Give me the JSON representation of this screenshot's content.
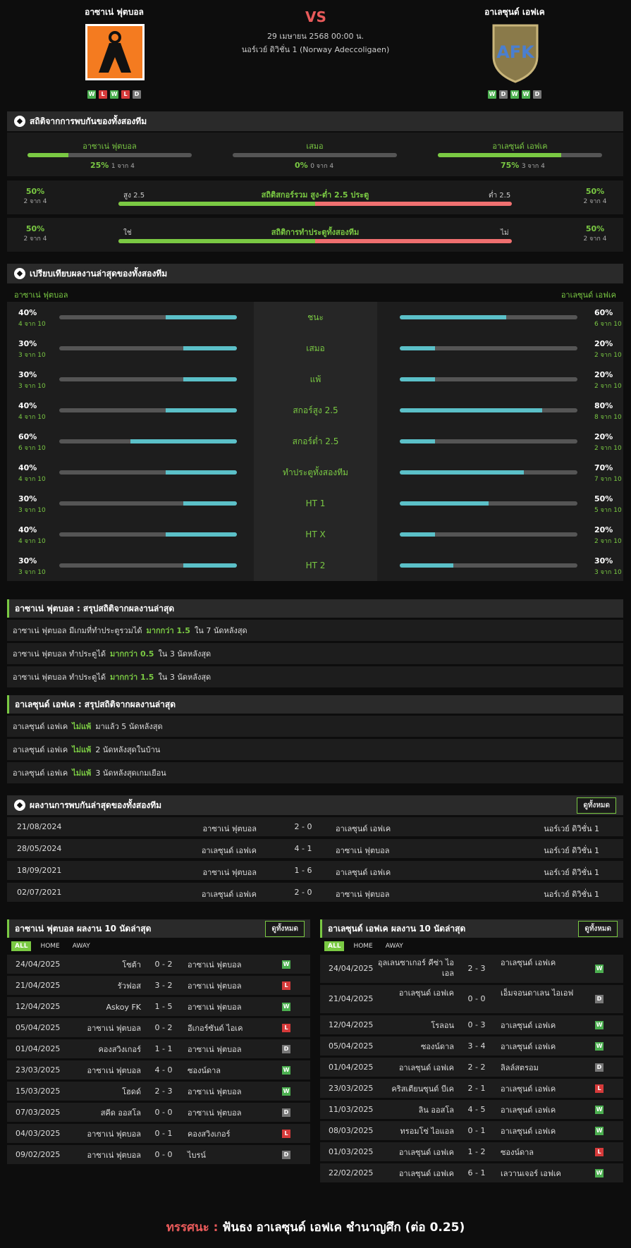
{
  "header": {
    "home_name": "อาซาเน่ ฟุตบอล",
    "away_name": "อาเลซุนด์ เอฟเค",
    "vs": "VS",
    "date": "29 เมษายน 2568 00:00 น.",
    "league": "นอร์เวย์ ดิวิชั่น 1 (Norway Adeccoligaen)",
    "home_form": [
      "W",
      "L",
      "W",
      "L",
      "D"
    ],
    "away_form": [
      "W",
      "D",
      "W",
      "W",
      "D"
    ],
    "home_logo_color": "#f47b20",
    "away_logo_color": "#8a7a4a"
  },
  "h2h_stats": {
    "title": "สถิติจากการพบกันของทั้งสองทีม",
    "home": {
      "label": "อาซาเน่ ฟุตบอล",
      "pct": "25%",
      "sub": "1 จาก 4",
      "value": 0.25
    },
    "draw": {
      "label": "เสมอ",
      "pct": "0%",
      "sub": "0 จาก 4",
      "value": 0
    },
    "away": {
      "label": "อาเลซุนด์ เอฟเค",
      "pct": "75%",
      "sub": "3 จาก 4",
      "value": 0.75
    },
    "ou": {
      "title": "สถิติสกอร์รวม สูง-ต่ำ 2.5 ประตู",
      "left_label": "สูง 2.5",
      "right_label": "ต่ำ 2.5",
      "left_pct": "50%",
      "left_sub": "2 จาก 4",
      "right_pct": "50%",
      "right_sub": "2 จาก 4",
      "split": 0.5
    },
    "btts": {
      "title": "สถิติการทำประตูทั้งสองทีม",
      "left_label": "ใช่",
      "right_label": "ไม่",
      "left_pct": "50%",
      "left_sub": "2 จาก 4",
      "right_pct": "50%",
      "right_sub": "2 จาก 4",
      "split": 0.5
    }
  },
  "compare": {
    "title": "เปรียบเทียบผลงานล่าสุดของทั้งสองทีม",
    "home_label": "อาซาเน่ ฟุตบอล",
    "away_label": "อาเลซุนด์ เอฟเค",
    "rows": [
      {
        "label": "ชนะ",
        "hp": "40%",
        "hs": "4 จาก 10",
        "hv": 0.4,
        "ap": "60%",
        "as": "6 จาก 10",
        "av": 0.6
      },
      {
        "label": "เสมอ",
        "hp": "30%",
        "hs": "3 จาก 10",
        "hv": 0.3,
        "ap": "20%",
        "as": "2 จาก 10",
        "av": 0.2
      },
      {
        "label": "แพ้",
        "hp": "30%",
        "hs": "3 จาก 10",
        "hv": 0.3,
        "ap": "20%",
        "as": "2 จาก 10",
        "av": 0.2
      },
      {
        "label": "สกอร์สูง 2.5",
        "hp": "40%",
        "hs": "4 จาก 10",
        "hv": 0.4,
        "ap": "80%",
        "as": "8 จาก 10",
        "av": 0.8
      },
      {
        "label": "สกอร์ต่ำ 2.5",
        "hp": "60%",
        "hs": "6 จาก 10",
        "hv": 0.6,
        "ap": "20%",
        "as": "2 จาก 10",
        "av": 0.2
      },
      {
        "label": "ทำประตูทั้งสองทีม",
        "hp": "40%",
        "hs": "4 จาก 10",
        "hv": 0.4,
        "ap": "70%",
        "as": "7 จาก 10",
        "av": 0.7
      },
      {
        "label": "HT 1",
        "hp": "30%",
        "hs": "3 จาก 10",
        "hv": 0.3,
        "ap": "50%",
        "as": "5 จาก 10",
        "av": 0.5
      },
      {
        "label": "HT X",
        "hp": "40%",
        "hs": "4 จาก 10",
        "hv": 0.4,
        "ap": "20%",
        "as": "2 จาก 10",
        "av": 0.2
      },
      {
        "label": "HT 2",
        "hp": "30%",
        "hs": "3 จาก 10",
        "hv": 0.3,
        "ap": "30%",
        "as": "3 จาก 10",
        "av": 0.3
      }
    ]
  },
  "home_summary": {
    "title": "อาซาเน่ ฟุตบอล : สรุปสถิติจากผลงานล่าสุด",
    "rows": [
      {
        "a": "อาซาเน่ ฟุตบอล  มีเกมที่ทำประตูรวมได้",
        "h": "มากกว่า  1.5",
        "b": "ใน 7 นัดหลังสุด"
      },
      {
        "a": "อาซาเน่ ฟุตบอล  ทำประตูได้",
        "h": "มากกว่า  0.5",
        "b": "ใน 3 นัดหลังสุด"
      },
      {
        "a": "อาซาเน่ ฟุตบอล  ทำประตูได้",
        "h": "มากกว่า  1.5",
        "b": "ใน 3 นัดหลังสุด"
      }
    ]
  },
  "away_summary": {
    "title": "อาเลซุนด์ เอฟเค : สรุปสถิติจากผลงานล่าสุด",
    "rows": [
      {
        "a": "อาเลซุนด์ เอฟเค",
        "h": "ไม่แพ้",
        "b": "มาแล้ว 5 นัดหลังสุด"
      },
      {
        "a": "อาเลซุนด์ เอฟเค",
        "h": "ไม่แพ้",
        "b": "2  นัดหลังสุดในบ้าน"
      },
      {
        "a": "อาเลซุนด์ เอฟเค",
        "h": "ไม่แพ้",
        "b": "3  นัดหลังสุดเกมเยือน"
      }
    ]
  },
  "h2h": {
    "title": "ผลงานการพบกันล่าสุดของทั้งสองทีม",
    "view_all": "ดูทั้งหมด",
    "rows": [
      {
        "date": "21/08/2024",
        "home": "อาซาเน่ ฟุตบอล",
        "score": "2 - 0",
        "away": "อาเลซุนด์ เอฟเค",
        "league": "นอร์เวย์ ดิวิชั่น 1"
      },
      {
        "date": "28/05/2024",
        "home": "อาเลซุนด์ เอฟเค",
        "score": "4 - 1",
        "away": "อาซาเน่ ฟุตบอล",
        "league": "นอร์เวย์ ดิวิชั่น 1"
      },
      {
        "date": "18/09/2021",
        "home": "อาซาเน่ ฟุตบอล",
        "score": "1 - 6",
        "away": "อาเลซุนด์ เอฟเค",
        "league": "นอร์เวย์ ดิวิชั่น 1"
      },
      {
        "date": "02/07/2021",
        "home": "อาเลซุนด์ เอฟเค",
        "score": "2 - 0",
        "away": "อาซาเน่ ฟุตบอล",
        "league": "นอร์เวย์ ดิวิชั่น 1"
      }
    ]
  },
  "home_last10": {
    "title": "อาซาเน่ ฟุตบอล ผลงาน 10 นัดล่าสุด",
    "view_all": "ดูทั้งหมด",
    "tabs": [
      "ALL",
      "HOME",
      "AWAY"
    ],
    "rows": [
      {
        "date": "24/04/2025",
        "home": "โซต้า",
        "score": "0 - 2",
        "away": "อาซาเน่ ฟุตบอล",
        "r": "W"
      },
      {
        "date": "21/04/2025",
        "home": "รัวฟอส",
        "score": "3 - 2",
        "away": "อาซาเน่ ฟุตบอล",
        "r": "L"
      },
      {
        "date": "12/04/2025",
        "home": "Askoy FK",
        "score": "1 - 5",
        "away": "อาซาเน่ ฟุตบอล",
        "r": "W"
      },
      {
        "date": "05/04/2025",
        "home": "อาซาเน่ ฟุตบอล",
        "score": "0 - 2",
        "away": "อีเกอร์ซันด์ ไอเค",
        "r": "L"
      },
      {
        "date": "01/04/2025",
        "home": "คองสวิงเกอร์",
        "score": "1 - 1",
        "away": "อาซาเน่ ฟุตบอล",
        "r": "D"
      },
      {
        "date": "23/03/2025",
        "home": "อาซาเน่ ฟุตบอล",
        "score": "4 - 0",
        "away": "ซองน์ดาล",
        "r": "W"
      },
      {
        "date": "15/03/2025",
        "home": "โฮดด์",
        "score": "2 - 3",
        "away": "อาซาเน่ ฟุตบอล",
        "r": "W"
      },
      {
        "date": "07/03/2025",
        "home": "สคีด ออสโล",
        "score": "0 - 0",
        "away": "อาซาเน่ ฟุตบอล",
        "r": "D"
      },
      {
        "date": "04/03/2025",
        "home": "อาซาเน่ ฟุตบอล",
        "score": "0 - 1",
        "away": "คองสวิงเกอร์",
        "r": "L"
      },
      {
        "date": "09/02/2025",
        "home": "อาซาเน่ ฟุตบอล",
        "score": "0 - 0",
        "away": "ไบรน์",
        "r": "D"
      }
    ]
  },
  "away_last10": {
    "title": "อาเลซุนด์ เอฟเค ผลงาน 10 นัดล่าสุด",
    "view_all": "ดูทั้งหมด",
    "tabs": [
      "ALL",
      "HOME",
      "AWAY"
    ],
    "rows": [
      {
        "date": "24/04/2025",
        "home": "อุลเลนซาเกอร์ คีซ่า ไอเอล",
        "score": "2 - 3",
        "away": "อาเลซุนด์ เอฟเค",
        "r": "W"
      },
      {
        "date": "21/04/2025",
        "home": "อาเลซุนด์ เอฟเค",
        "score": "0 - 0",
        "away": "เอ็มจอนดาเลน ไอเอฟ",
        "r": "D"
      },
      {
        "date": "12/04/2025",
        "home": "โรลอน",
        "score": "0 - 3",
        "away": "อาเลซุนด์ เอฟเค",
        "r": "W"
      },
      {
        "date": "05/04/2025",
        "home": "ซองน์ดาล",
        "score": "3 - 4",
        "away": "อาเลซุนด์ เอฟเค",
        "r": "W"
      },
      {
        "date": "01/04/2025",
        "home": "อาเลซุนด์ เอฟเค",
        "score": "2 - 2",
        "away": "ลิลล์สตรอม",
        "r": "D"
      },
      {
        "date": "23/03/2025",
        "home": "คริสเตียนซุนด์ บีเค",
        "score": "2 - 1",
        "away": "อาเลซุนด์ เอฟเค",
        "r": "L"
      },
      {
        "date": "11/03/2025",
        "home": "ลิน ออสโล",
        "score": "4 - 5",
        "away": "อาเลซุนด์ เอฟเค",
        "r": "W"
      },
      {
        "date": "08/03/2025",
        "home": "ทรอมโซ่ ไอแอล",
        "score": "0 - 1",
        "away": "อาเลซุนด์ เอฟเค",
        "r": "W"
      },
      {
        "date": "01/03/2025",
        "home": "อาเลซุนด์ เอฟเค",
        "score": "1 - 2",
        "away": "ซองน์ดาล",
        "r": "L"
      },
      {
        "date": "22/02/2025",
        "home": "อาเลซุนด์ เอฟเค",
        "score": "6 - 1",
        "away": "เลวานเจอร์ เอฟเค",
        "r": "W"
      }
    ]
  },
  "verdict": {
    "label": "ทรรศนะ :",
    "text": "ฟันธง อาเลซุนด์ เอฟเค ชำนาญศึก (ต่อ 0.25)"
  }
}
